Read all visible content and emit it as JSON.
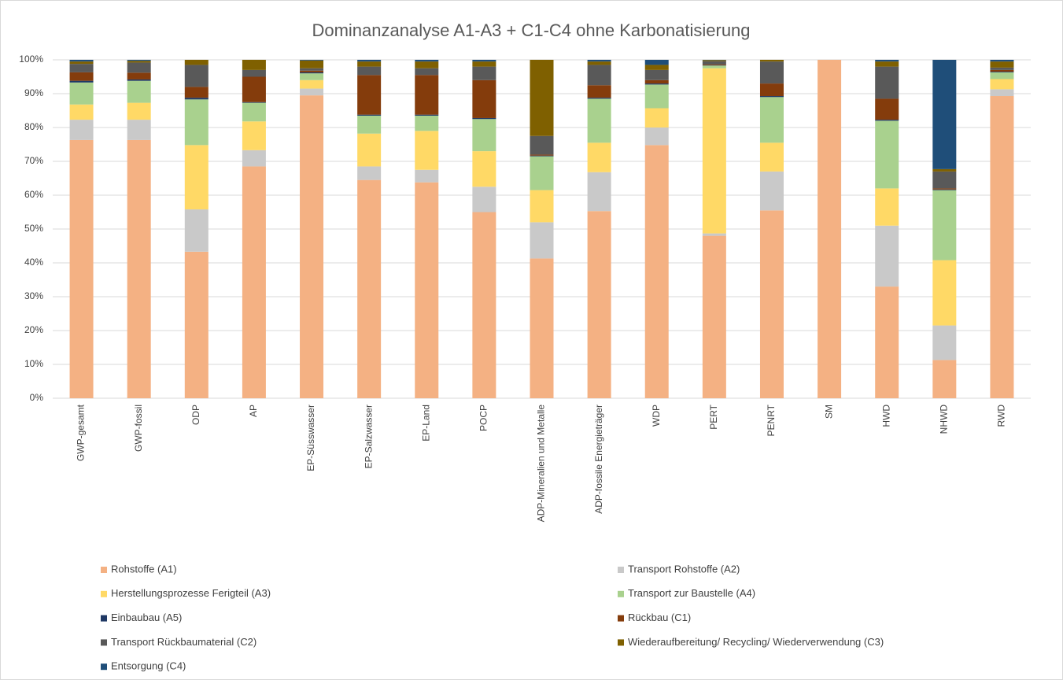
{
  "chart_data": {
    "type": "stacked_bar",
    "title": "Dominanzanalyse A1-A3 + C1-C4 ohne Karbonatisierung",
    "categories": [
      "GWP-gesamt",
      "GWP-fossil",
      "ODP",
      "AP",
      "EP-Süsswasser",
      "EP-Salzwasser",
      "EP-Land",
      "POCP",
      "ADP-Mineralien und Metalle",
      "ADP-fossile Energieträger",
      "WDP",
      "PERT",
      "PENRT",
      "SM",
      "HWD",
      "NHWD",
      "RWD"
    ],
    "series": [
      {
        "name": "Rohstoffe  (A1)",
        "color": "#f4b183",
        "values": [
          76.3,
          76.3,
          43.3,
          68.5,
          89.5,
          64.5,
          63.8,
          55,
          41.3,
          55.3,
          74.8,
          48,
          55.5,
          100,
          33,
          11.3,
          89.3
        ]
      },
      {
        "name": "Transport Rohstoffe (A2)",
        "color": "#c9c9c9",
        "values": [
          6,
          6,
          12.5,
          4.8,
          2,
          4,
          3.7,
          7.5,
          10.7,
          11.5,
          5.2,
          0.7,
          11.5,
          0,
          18,
          10.2,
          2
        ]
      },
      {
        "name": "Herstellungsprozesse Ferigteil (A3)",
        "color": "#ffd966",
        "values": [
          4.5,
          5,
          19,
          8.5,
          2.5,
          9.7,
          11.5,
          10.5,
          9.5,
          8.7,
          5.7,
          48.8,
          8.5,
          0,
          11,
          19.3,
          3
        ]
      },
      {
        "name": "Transport zur Baustelle (A4)",
        "color": "#a9d18e",
        "values": [
          6.5,
          6.5,
          13.5,
          5.5,
          2,
          5.3,
          4.5,
          9.5,
          10,
          13,
          7,
          0.8,
          13.5,
          0,
          20,
          20.7,
          2
        ]
      },
      {
        "name": "Einbaubau (A5)",
        "color": "#1f3864",
        "values": [
          0.5,
          0.4,
          0.5,
          0.2,
          0.3,
          0.3,
          0.3,
          0.3,
          0.2,
          0.3,
          0.3,
          0.1,
          0.3,
          0,
          0.3,
          0.2,
          0.2
        ]
      },
      {
        "name": "Rückbau (C1)",
        "color": "#843c0c",
        "values": [
          2.5,
          2,
          3.2,
          7.5,
          0.5,
          11.7,
          11.7,
          11.2,
          0.3,
          3.7,
          1,
          0.2,
          3.7,
          0,
          6.2,
          0.3,
          0.5
        ]
      },
      {
        "name": "Transport Rückbaumaterial (C2)",
        "color": "#595959",
        "values": [
          2.5,
          3,
          6.5,
          2,
          0.7,
          2.5,
          2,
          4,
          5.5,
          6,
          3,
          1,
          6.5,
          0,
          9.5,
          5,
          0.7
        ]
      },
      {
        "name": "Wiederaufbereitung/ Recycling/ Wiederverwendung (C3)",
        "color": "#7f6000",
        "values": [
          0.7,
          0.5,
          1.5,
          3,
          2.3,
          1.5,
          2,
          1.5,
          22.5,
          1,
          1.5,
          0.3,
          0.5,
          0,
          1.5,
          0.7,
          1.8
        ]
      },
      {
        "name": "Entsorgung (C4)",
        "color": "#1f4e79",
        "values": [
          0.5,
          0.3,
          0,
          0,
          0.2,
          0.5,
          0.5,
          0.5,
          0,
          0.5,
          1.5,
          0.1,
          0,
          0,
          0.5,
          32.3,
          0.5
        ]
      }
    ],
    "ylim": [
      0,
      100
    ],
    "yticks": [
      {
        "value": 0,
        "label": "0%"
      },
      {
        "value": 10,
        "label": "10%"
      },
      {
        "value": 20,
        "label": "20%"
      },
      {
        "value": 30,
        "label": "30%"
      },
      {
        "value": 40,
        "label": "40%"
      },
      {
        "value": 50,
        "label": "50%"
      },
      {
        "value": 60,
        "label": "60%"
      },
      {
        "value": 70,
        "label": "70%"
      },
      {
        "value": 80,
        "label": "80%"
      },
      {
        "value": 90,
        "label": "90%"
      },
      {
        "value": 100,
        "label": "100%"
      }
    ],
    "grid": true
  }
}
